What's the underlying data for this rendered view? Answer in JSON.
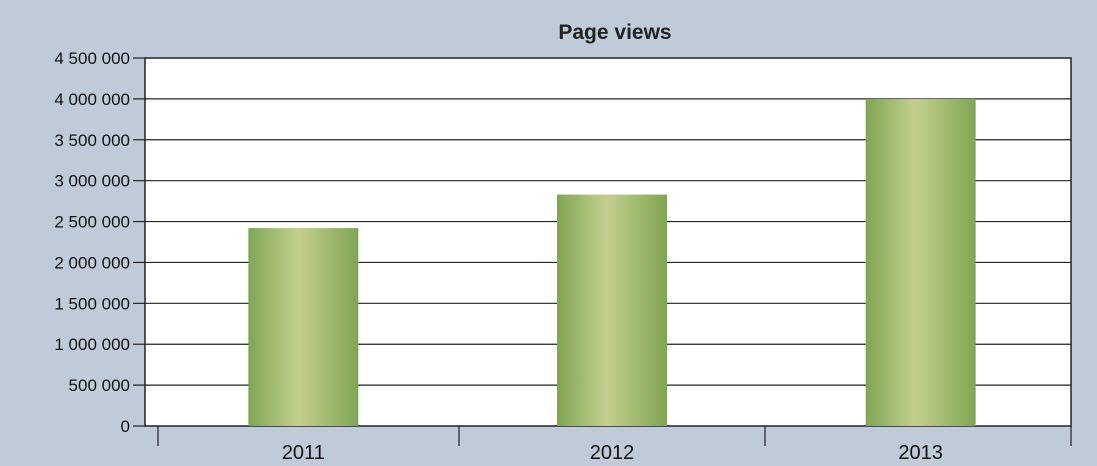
{
  "chart_data": {
    "type": "bar",
    "title": "Page views",
    "categories": [
      "2011",
      "2012",
      "2013"
    ],
    "values": [
      2420000,
      2830000,
      4000000
    ],
    "xlabel": "",
    "ylabel": "",
    "ylim": [
      0,
      4500000
    ],
    "y_ticks": [
      0,
      500000,
      1000000,
      1500000,
      2000000,
      2500000,
      3000000,
      3500000,
      4000000,
      4500000
    ],
    "y_tick_labels": [
      "0",
      "500 000",
      "1 000 000",
      "1 500 000",
      "2 000 000",
      "2 500 000",
      "3 000 000",
      "3 500 000",
      "4 000 000",
      "4 500 000"
    ],
    "grid": true,
    "legend": "none",
    "colors": {
      "background": "#bfcbd8",
      "plot_area": "#ffffff",
      "bar_edge": "#7fa653",
      "bar_center": "#c4cf8f",
      "grid": "#222222"
    }
  }
}
